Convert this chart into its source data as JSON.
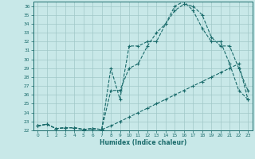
{
  "xlabel": "Humidex (Indice chaleur)",
  "bg_color": "#c8e8e8",
  "grid_color": "#a0c8c8",
  "line_color": "#1a6b6b",
  "xlim": [
    -0.5,
    23.5
  ],
  "ylim": [
    22,
    36.5
  ],
  "xticks": [
    0,
    1,
    2,
    3,
    4,
    5,
    6,
    7,
    8,
    9,
    10,
    11,
    12,
    13,
    14,
    15,
    16,
    17,
    18,
    19,
    20,
    21,
    22,
    23
  ],
  "yticks": [
    22,
    23,
    24,
    25,
    26,
    27,
    28,
    29,
    30,
    31,
    32,
    33,
    34,
    35,
    36
  ],
  "line1_x": [
    0,
    1,
    2,
    3,
    4,
    5,
    6,
    7,
    8,
    9,
    10,
    11,
    12,
    13,
    14,
    15,
    16,
    17,
    18,
    19,
    20,
    21,
    22,
    23
  ],
  "line1_y": [
    22.5,
    22.7,
    22.2,
    22.3,
    22.3,
    22.1,
    22.2,
    22.1,
    29.0,
    25.5,
    31.5,
    31.5,
    32.0,
    32.0,
    34.0,
    36.0,
    36.5,
    35.5,
    33.5,
    32.0,
    32.0,
    29.5,
    26.5,
    25.5
  ],
  "line2_x": [
    0,
    1,
    2,
    3,
    4,
    5,
    6,
    7,
    8,
    9,
    10,
    11,
    12,
    13,
    14,
    15,
    16,
    17,
    18,
    19,
    20,
    21,
    22,
    23
  ],
  "line2_y": [
    22.5,
    22.7,
    22.2,
    22.3,
    22.3,
    22.1,
    22.2,
    22.1,
    26.5,
    26.5,
    29.0,
    29.5,
    31.5,
    33.0,
    34.0,
    35.5,
    36.2,
    36.0,
    35.0,
    32.5,
    31.5,
    31.5,
    29.0,
    26.5
  ],
  "line3_x": [
    0,
    1,
    2,
    3,
    4,
    5,
    6,
    7,
    8,
    9,
    10,
    11,
    12,
    13,
    14,
    15,
    16,
    17,
    18,
    19,
    20,
    21,
    22,
    23
  ],
  "line3_y": [
    22.5,
    22.7,
    22.2,
    22.3,
    22.3,
    22.1,
    22.2,
    22.1,
    22.5,
    23.0,
    23.5,
    24.0,
    24.5,
    25.0,
    25.5,
    26.0,
    26.5,
    27.0,
    27.5,
    28.0,
    28.5,
    29.0,
    29.5,
    25.5
  ]
}
